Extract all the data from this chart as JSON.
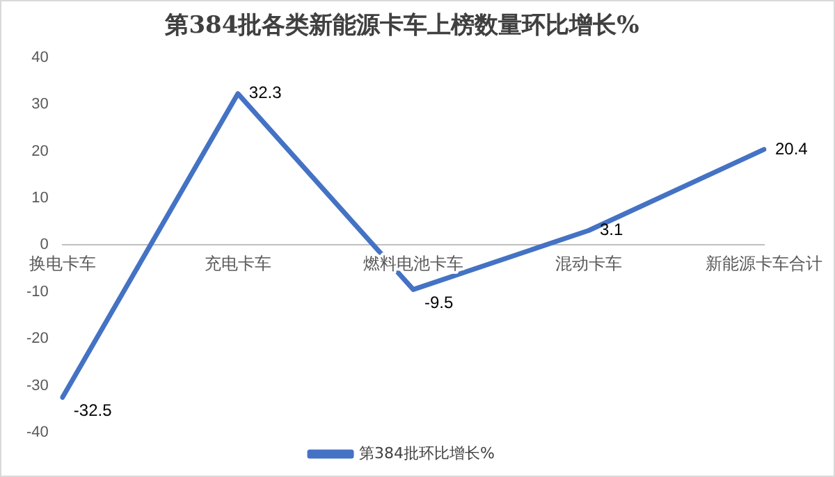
{
  "chart_data": {
    "type": "line",
    "title": "第384批各类新能源卡车上榜数量环比增长%",
    "categories": [
      "换电卡车",
      "充电卡车",
      "燃料电池卡车",
      "混动卡车",
      "新能源卡车合计"
    ],
    "series": [
      {
        "name": "第384批环比增长%",
        "color": "#4472c4",
        "values": [
          -32.5,
          32.3,
          -9.5,
          3.1,
          20.4
        ]
      }
    ],
    "ylim": [
      -40,
      40
    ],
    "yticks": [
      -40,
      -30,
      -20,
      -10,
      0,
      10,
      20,
      30,
      40
    ],
    "grid": false,
    "legend": "bottom",
    "marker": "none",
    "line_style": "solid",
    "data_labels": true
  }
}
